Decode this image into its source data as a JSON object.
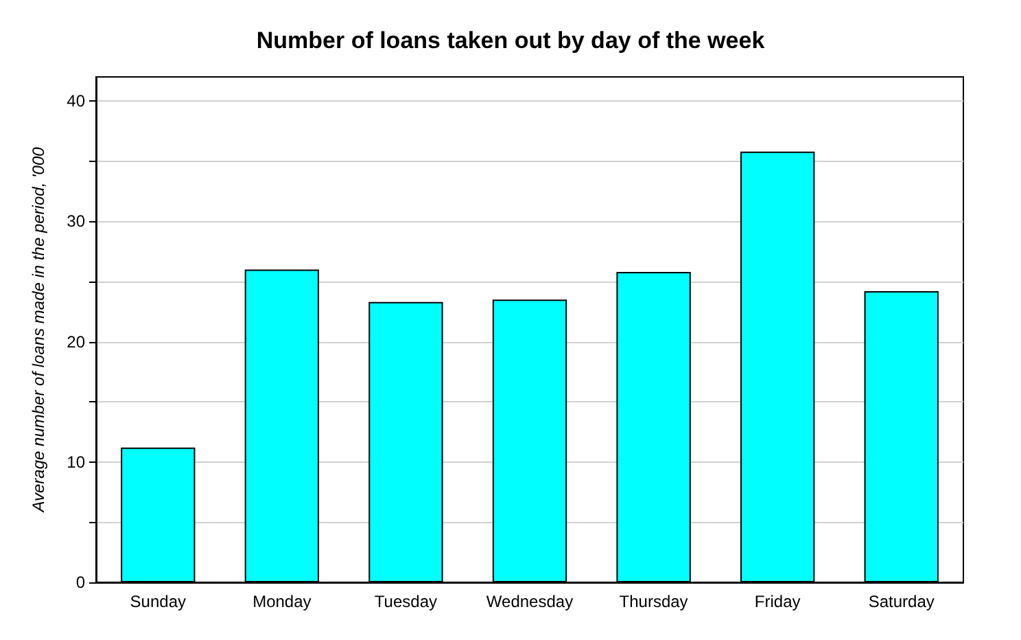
{
  "chart_data": {
    "type": "bar",
    "title": "Number of loans taken out by day of the week",
    "ylabel": "Average number of loans made in the period, '000",
    "categories": [
      "Sunday",
      "Monday",
      "Tuesday",
      "Wednesday",
      "Thursday",
      "Friday",
      "Saturday"
    ],
    "values": [
      11.2,
      26.0,
      23.3,
      23.5,
      25.8,
      35.8,
      24.2
    ],
    "color": "#00ffff",
    "ylim": [
      0,
      42
    ],
    "yticks": [
      0,
      {
        "value": 5,
        "label": null
      },
      10,
      {
        "value": 15,
        "label": null
      },
      20,
      {
        "value": 25,
        "label": null
      },
      30,
      {
        "value": 35,
        "label": null
      },
      40
    ],
    "grid": "y"
  }
}
